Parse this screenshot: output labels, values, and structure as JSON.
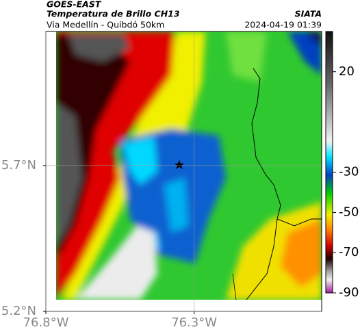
{
  "header": {
    "source": "GOES-EAST",
    "title": "Temperatura de Brillo CH13",
    "subtitle": "Via Medellín - Quibdó 50km",
    "brand": "SIATA",
    "timestamp": "2024-04-19 01:39"
  },
  "map": {
    "xlim": [
      -76.8,
      -75.87
    ],
    "ylim": [
      5.2,
      6.16
    ],
    "xticks": [
      {
        "value": -76.8,
        "label": "76.8°W"
      },
      {
        "value": -76.3,
        "label": "76.3°W"
      }
    ],
    "yticks": [
      {
        "value": 5.7,
        "label": "5.7°N"
      },
      {
        "value": 5.2,
        "label": "5.2°N"
      }
    ],
    "grid": true
  },
  "colorbar": {
    "lim": [
      40,
      -90
    ],
    "ticks": [
      20,
      -30,
      -50,
      -70,
      -90
    ]
  }
}
